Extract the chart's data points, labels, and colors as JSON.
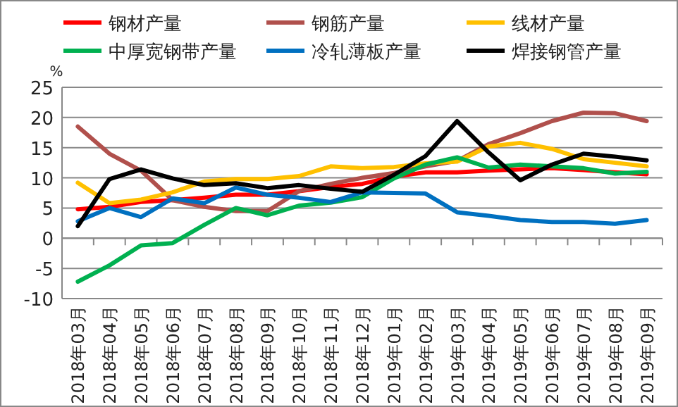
{
  "chart_data": {
    "type": "line",
    "ylabel": "%",
    "ylim": [
      -10,
      25
    ],
    "yticks": [
      -10,
      -5,
      0,
      5,
      10,
      15,
      20,
      25
    ],
    "grid": "y",
    "legend": "top",
    "marker": "none",
    "line_style": "solid",
    "categories": [
      "2018年03月",
      "2018年04月",
      "2018年05月",
      "2018年06月",
      "2018年07月",
      "2018年08月",
      "2018年09月",
      "2018年10月",
      "2018年11月",
      "2018年12月",
      "2019年01月",
      "2019年02月",
      "2019年03月",
      "2019年04月",
      "2019年05月",
      "2019年06月",
      "2019年07月",
      "2019年08月",
      "2019年09月"
    ],
    "series": [
      {
        "name": "钢材产量",
        "color": "#ff0000",
        "values": [
          4.8,
          5.2,
          6.0,
          6.3,
          6.7,
          7.2,
          7.2,
          7.8,
          8.5,
          9.0,
          10.2,
          10.9,
          10.9,
          11.2,
          11.4,
          11.6,
          11.3,
          10.9,
          10.6
        ]
      },
      {
        "name": "钢筋产量",
        "color": "#b0504c",
        "values": [
          18.5,
          14,
          11.2,
          6.3,
          5.2,
          4.5,
          4.5,
          7.8,
          9.0,
          10.0,
          10.8,
          11.9,
          12.8,
          15.6,
          17.4,
          19.4,
          20.8,
          20.7,
          19.4
        ]
      },
      {
        "name": "线材产量",
        "color": "#ffc000",
        "values": [
          9.2,
          5.8,
          6.4,
          7.6,
          9.4,
          9.8,
          9.8,
          10.3,
          11.9,
          11.6,
          11.8,
          12.4,
          12.7,
          15.2,
          15.8,
          14.8,
          13.1,
          12.5,
          11.9
        ]
      },
      {
        "name": "中厚宽钢带产量",
        "color": "#00b050",
        "values": [
          -7.2,
          -4.5,
          -1.2,
          -0.8,
          2.2,
          5.0,
          3.8,
          5.4,
          5.9,
          6.8,
          9.9,
          12.2,
          13.4,
          11.7,
          12.2,
          11.9,
          11.6,
          10.7,
          11.0
        ]
      },
      {
        "name": "冷轧薄板产量",
        "color": "#0070c0",
        "values": [
          2.8,
          5.0,
          3.5,
          6.6,
          5.8,
          8.4,
          7.2,
          6.7,
          6.0,
          7.6,
          7.5,
          7.4,
          4.3,
          3.7,
          3.0,
          2.7,
          2.7,
          2.4,
          3.0
        ]
      },
      {
        "name": "焊接钢管产量",
        "color": "#000000",
        "values": [
          2.0,
          9.8,
          11.4,
          9.9,
          8.8,
          9.1,
          8.3,
          8.8,
          8.2,
          7.7,
          10.5,
          13.6,
          19.4,
          14.2,
          9.6,
          12.2,
          14.0,
          13.5,
          12.9
        ]
      }
    ]
  }
}
